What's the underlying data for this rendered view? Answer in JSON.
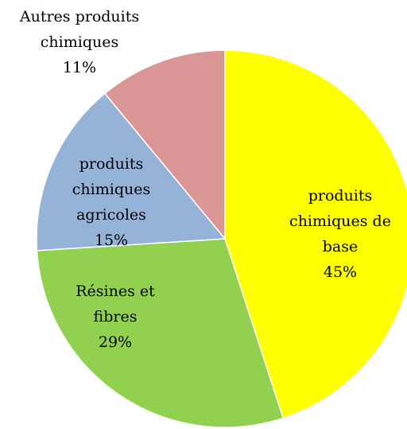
{
  "chart_data": {
    "type": "pie",
    "categories": [
      "produits chimiques de base",
      "Résines et fibres",
      "produits chimiques agricoles",
      "Autres produits chimiques"
    ],
    "values": [
      45,
      29,
      15,
      11
    ],
    "value_labels": [
      "45%",
      "29%",
      "15%",
      "11%"
    ],
    "colors": [
      "#ffff00",
      "#92d050",
      "#95b3d7",
      "#d99694"
    ]
  }
}
